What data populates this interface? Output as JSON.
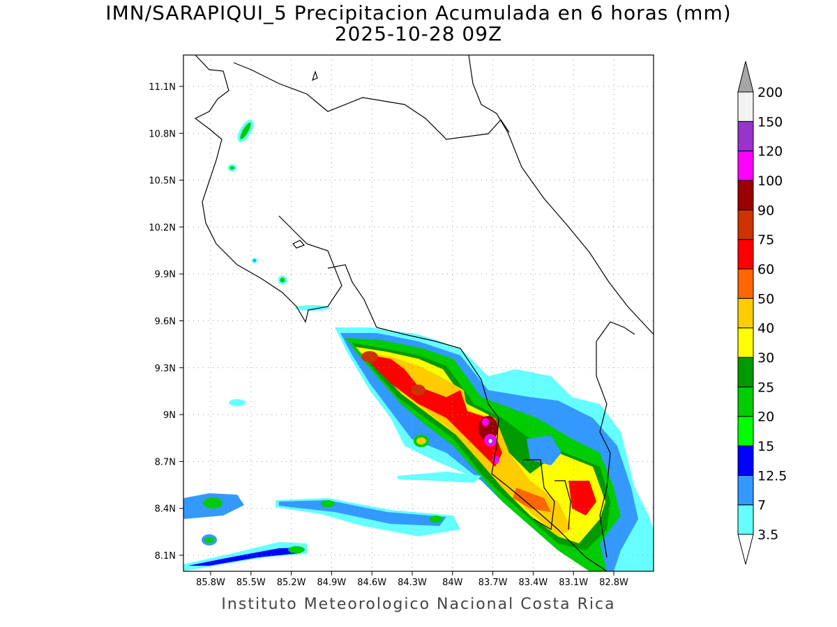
{
  "title": "IMN/SARAPIQUI_5 Precipitacion Acumulada en 6 horas (mm)",
  "subtitle": "2025-10-28 09Z",
  "footer": "Instituto Meteorologico Nacional Costa Rica",
  "map": {
    "lon_labels": [
      "85.8W",
      "85.5W",
      "85.2W",
      "84.9W",
      "84.6W",
      "84.3W",
      "84W",
      "83.7W",
      "83.4W",
      "83.1W",
      "82.8W"
    ],
    "lat_labels": [
      "11.1N",
      "10.8N",
      "10.5N",
      "10.2N",
      "9.9N",
      "9.6N",
      "9.3N",
      "9N",
      "8.7N",
      "8.4N",
      "8.1N"
    ],
    "grid": "dotted"
  },
  "colorbar": {
    "levels": [
      "3.5",
      "7",
      "12.5",
      "15",
      "20",
      "25",
      "30",
      "40",
      "50",
      "60",
      "75",
      "90",
      "100",
      "120",
      "150",
      "200"
    ],
    "colors": [
      "#66ffff",
      "#3399ff",
      "#0000ff",
      "#00ff00",
      "#00cc00",
      "#009900",
      "#ffff00",
      "#ffcc00",
      "#ff6600",
      "#ff0000",
      "#cc3300",
      "#990000",
      "#ff00ff",
      "#9933cc",
      "#f2f2f2"
    ],
    "over_color": "#a6a6a6",
    "under_color": "#ffffff"
  }
}
